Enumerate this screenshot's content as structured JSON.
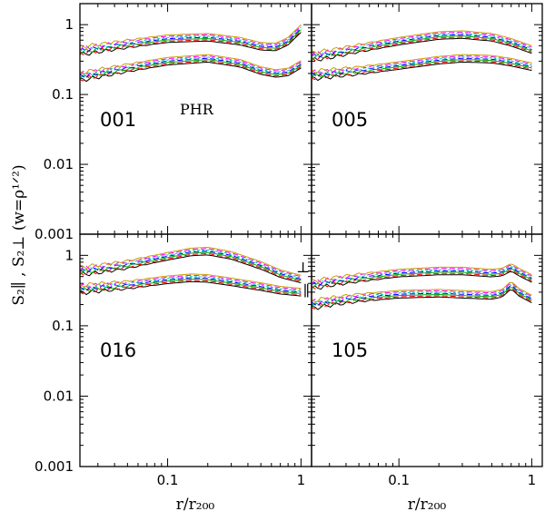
{
  "figure": {
    "ylabel": "S₂∥ , S₂⊥  (w=ρ¹ᐟ²)",
    "xlabel": "r/r₂₀₀"
  },
  "chart_data": {
    "type": "line",
    "layout": "2x2 panels, shared axes",
    "x_scale": "log",
    "y_scale": "log",
    "xlim": [
      0.022,
      1.2
    ],
    "ylim": [
      0.001,
      2
    ],
    "xticks": [
      {
        "value": 0.1,
        "label": "0.1"
      },
      {
        "value": 1,
        "label": "1"
      }
    ],
    "yticks": [
      {
        "value": 1,
        "label": "1"
      },
      {
        "value": 0.1,
        "label": "0.1"
      },
      {
        "value": 0.01,
        "label": "0.01"
      },
      {
        "value": 0.001,
        "label": "0.001"
      }
    ],
    "xlabel": "r/r200",
    "ylabel": "S2∥ , S2⊥ (w=ρ^1/2)",
    "colors": [
      "#000000",
      "#ff0000",
      "#00b000",
      "#0000ff",
      "#00c8c8",
      "#ff00ff",
      "#c8a000"
    ],
    "panels": [
      {
        "id": "001",
        "annotation": "PHR",
        "series": [
          {
            "name": "upper",
            "x": [
              0.022,
              0.03,
              0.05,
              0.1,
              0.2,
              0.35,
              0.5,
              0.65,
              0.8,
              1.0
            ],
            "y": [
              0.42,
              0.46,
              0.53,
              0.63,
              0.66,
              0.58,
              0.49,
              0.48,
              0.58,
              0.88
            ]
          },
          {
            "name": "lower",
            "x": [
              0.022,
              0.03,
              0.05,
              0.1,
              0.2,
              0.35,
              0.5,
              0.65,
              0.8,
              1.0
            ],
            "y": [
              0.18,
              0.2,
              0.24,
              0.3,
              0.33,
              0.28,
              0.22,
              0.2,
              0.21,
              0.27
            ]
          }
        ]
      },
      {
        "id": "005",
        "annotation": "",
        "series": [
          {
            "name": "upper",
            "x": [
              0.022,
              0.03,
              0.05,
              0.1,
              0.2,
              0.3,
              0.5,
              0.7,
              1.0
            ],
            "y": [
              0.35,
              0.38,
              0.46,
              0.58,
              0.7,
              0.72,
              0.66,
              0.56,
              0.44
            ]
          },
          {
            "name": "lower",
            "x": [
              0.022,
              0.03,
              0.05,
              0.1,
              0.2,
              0.3,
              0.5,
              0.7,
              1.0
            ],
            "y": [
              0.19,
              0.2,
              0.22,
              0.26,
              0.31,
              0.33,
              0.32,
              0.29,
              0.25
            ]
          }
        ]
      },
      {
        "id": "016",
        "annotation": "",
        "series": [
          {
            "name": "upper",
            "x": [
              0.022,
              0.03,
              0.05,
              0.1,
              0.15,
              0.2,
              0.3,
              0.5,
              0.7,
              1.0
            ],
            "y": [
              0.6,
              0.64,
              0.74,
              0.97,
              1.12,
              1.15,
              1.0,
              0.72,
              0.55,
              0.46
            ]
          },
          {
            "name": "lower",
            "x": [
              0.022,
              0.03,
              0.05,
              0.1,
              0.15,
              0.2,
              0.3,
              0.5,
              0.7,
              1.0
            ],
            "y": [
              0.33,
              0.35,
              0.38,
              0.45,
              0.48,
              0.47,
              0.42,
              0.36,
              0.32,
              0.3
            ]
          }
        ]
      },
      {
        "id": "105",
        "annotation": "⊥ ∥",
        "series": [
          {
            "name": "upper",
            "x": [
              0.022,
              0.03,
              0.05,
              0.1,
              0.2,
              0.3,
              0.5,
              0.6,
              0.7,
              0.8,
              1.0
            ],
            "y": [
              0.38,
              0.42,
              0.48,
              0.56,
              0.6,
              0.6,
              0.56,
              0.58,
              0.68,
              0.58,
              0.47
            ]
          },
          {
            "name": "lower",
            "x": [
              0.022,
              0.03,
              0.05,
              0.1,
              0.2,
              0.3,
              0.5,
              0.6,
              0.7,
              0.8,
              1.0
            ],
            "y": [
              0.2,
              0.22,
              0.25,
              0.28,
              0.29,
              0.28,
              0.27,
              0.29,
              0.38,
              0.3,
              0.24
            ]
          }
        ]
      }
    ]
  }
}
